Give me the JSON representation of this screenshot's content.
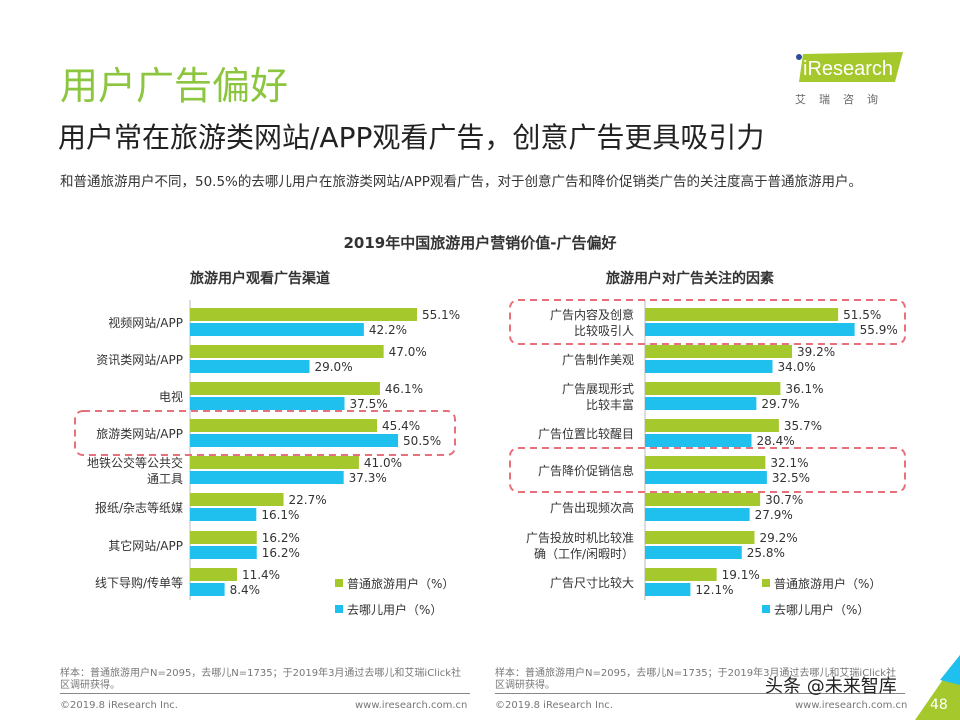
{
  "header": {
    "title": "用户广告偏好",
    "subtitle": "用户常在旅游类网站/APP观看广告，创意广告更具吸引力",
    "description": "和普通旅游用户不同，50.5%的去哪儿用户在旅游类网站/APP观看广告，对于创意广告和降价促销类广告的关注度高于普通旅游用户。",
    "logo_text": "iResearch",
    "logo_cn": "艾瑞咨询"
  },
  "colors": {
    "green": "#a5c82d",
    "blue": "#1fc0ee",
    "highlight": "#e8707a",
    "title": "#8cc63f"
  },
  "chart_data": [
    {
      "type": "bar",
      "orientation": "horizontal",
      "title": "2019年中国旅游用户营销价值-广告偏好",
      "subtitle": "旅游用户观看广告渠道",
      "categories": [
        "视频网站/APP",
        "资讯类网站/APP",
        "电视",
        "旅游类网站/APP",
        "地铁公交等公共交\n通工具",
        "报纸/杂志等纸媒",
        "其它网站/APP",
        "线下导购/传单等"
      ],
      "series": [
        {
          "name": "普通旅游用户（%）",
          "values": [
            55.1,
            47.0,
            46.1,
            45.4,
            41.0,
            22.7,
            16.2,
            11.4
          ]
        },
        {
          "name": "去哪儿用户（%）",
          "values": [
            42.2,
            29.0,
            37.5,
            50.5,
            37.3,
            16.1,
            16.2,
            8.4
          ]
        }
      ],
      "highlighted": [
        "旅游类网站/APP"
      ],
      "legend": "bottom-right",
      "grid": false
    },
    {
      "type": "bar",
      "orientation": "horizontal",
      "subtitle": "旅游用户对广告关注的因素",
      "categories": [
        "广告内容及创意\n比较吸引人",
        "广告制作美观",
        "广告展现形式\n比较丰富",
        "广告位置比较醒目",
        "广告降价促销信息",
        "广告出现频次高",
        "广告投放时机比较准\n确（工作/闲暇时）",
        "广告尺寸比较大"
      ],
      "series": [
        {
          "name": "普通旅游用户（%）",
          "values": [
            51.5,
            39.2,
            36.1,
            35.7,
            32.1,
            30.7,
            29.2,
            19.1
          ]
        },
        {
          "name": "去哪儿用户（%）",
          "values": [
            55.9,
            34.0,
            29.7,
            28.4,
            32.5,
            27.9,
            25.8,
            12.1
          ]
        }
      ],
      "highlighted": [
        "广告内容及创意\n比较吸引人",
        "广告降价促销信息"
      ],
      "legend": "bottom-right",
      "grid": false
    }
  ],
  "footer": {
    "note": "样本：普通旅游用户N=2095，去哪儿N=1735；于2019年3月通过去哪儿和艾瑞iClick社区调研获得。",
    "copyright": "©2019.8 iResearch Inc.",
    "url": "www.iresearch.com.cn",
    "watermark": "头条 @未来智库",
    "page": "48"
  }
}
